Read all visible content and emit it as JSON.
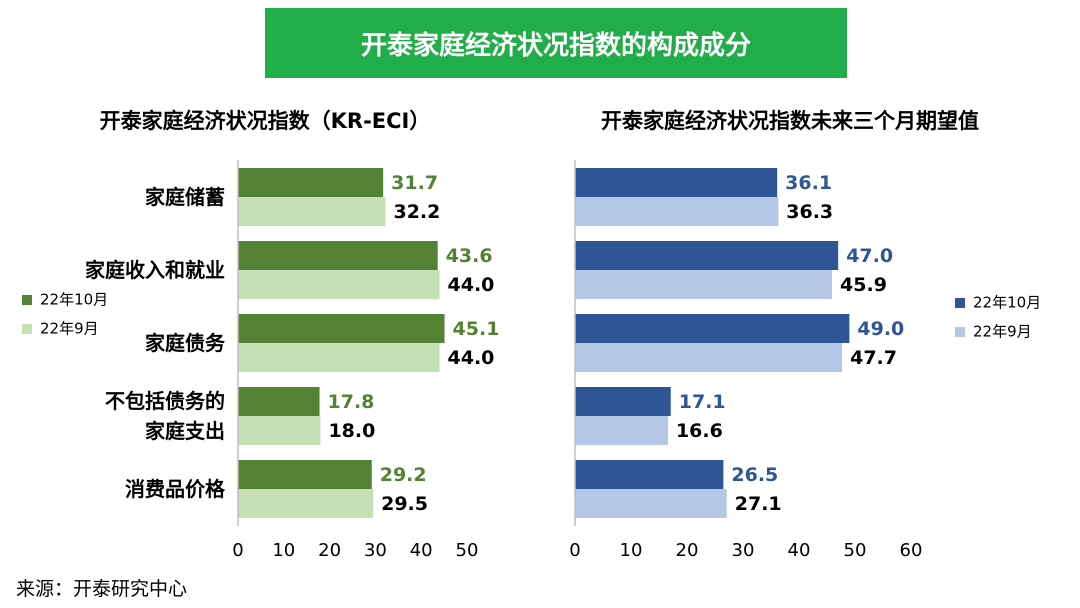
{
  "title": "开泰家庭经济状况指数的构成成分",
  "source": "来源：开泰研究中心",
  "chart_data": [
    {
      "type": "bar",
      "orientation": "horizontal",
      "title": "开泰家庭经济状况指数（KR-ECI）",
      "categories": [
        "家庭储蓄",
        "家庭收入和就业",
        "家庭债务",
        "不包括债务的\n家庭支出",
        "消费品价格"
      ],
      "series": [
        {
          "name": "22年10月",
          "color": "#548235",
          "values": [
            31.7,
            43.6,
            45.1,
            17.8,
            29.2
          ]
        },
        {
          "name": "22年9月",
          "color": "#c5e0b4",
          "values": [
            32.2,
            44.0,
            44.0,
            18.0,
            29.5
          ],
          "value_labels": [
            "32.2",
            "44.0",
            "44.0",
            "18.0",
            "29.5"
          ]
        }
      ],
      "xlim": [
        0,
        50
      ],
      "xticks": [
        0,
        10,
        20,
        30,
        40,
        50
      ],
      "legend": "left"
    },
    {
      "type": "bar",
      "orientation": "horizontal",
      "title": "开泰家庭经济状况指数未来三个月期望值",
      "categories": [
        null,
        null,
        null,
        null,
        null
      ],
      "series": [
        {
          "name": "22年10月",
          "color": "#2f5597",
          "values": [
            36.1,
            47.0,
            49.0,
            17.1,
            26.5
          ],
          "value_labels": [
            "36.1",
            "47.0",
            "49.0",
            "17.1",
            "26.5"
          ]
        },
        {
          "name": "22年9月",
          "color": "#b4c7e7",
          "values": [
            36.3,
            45.9,
            47.7,
            16.6,
            27.1
          ]
        }
      ],
      "xlim": [
        0,
        60
      ],
      "xticks": [
        0,
        10,
        20,
        30,
        40,
        50,
        60
      ],
      "legend": "right"
    }
  ]
}
